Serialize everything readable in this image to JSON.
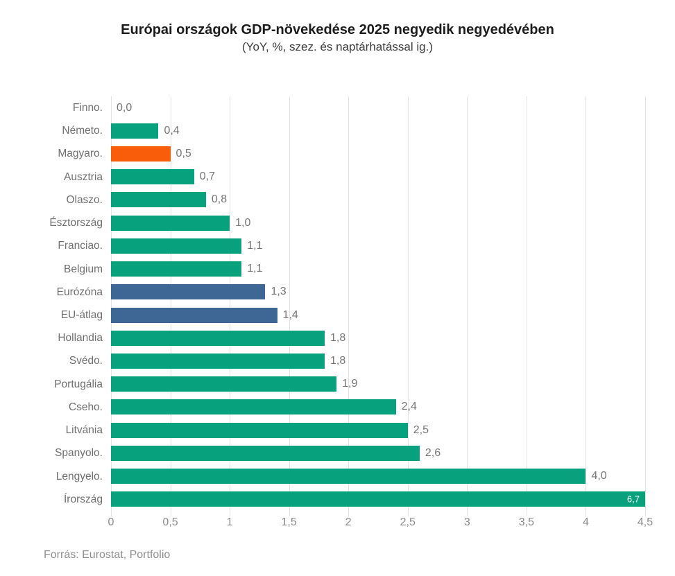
{
  "header": {
    "title": "Európai országok GDP-növekedése 2025 negyedik negyedévében",
    "subtitle": "(YoY, %, szez. és naptárhatással ig.)"
  },
  "footer": {
    "source": "Forrás: Eurostat, Portfolio"
  },
  "colors": {
    "bar_default": "#07a17d",
    "bar_highlight": "#f95d0a",
    "bar_aggregate": "#3e6795",
    "grid": "#e3e3e3",
    "category_text": "#6f6f6f",
    "value_text": "#757575",
    "value_inside_text": "#ffffff",
    "tick_text": "#8a8a8a",
    "title_text": "#1c1c1c"
  },
  "chart_data": {
    "type": "bar",
    "orientation": "horizontal",
    "title": "Európai országok GDP-növekedése 2025 negyedik negyedévében",
    "subtitle": "(YoY, %, szez. és naptárhatással ig.)",
    "xlabel": "",
    "ylabel": "",
    "xlim": [
      0,
      4.5
    ],
    "clip_max": 4.5,
    "grid": true,
    "legend": "none",
    "categories": [
      "Finno.",
      "Németo.",
      "Magyaro.",
      "Ausztria",
      "Olaszo.",
      "Észtország",
      "Franciao.",
      "Belgium",
      "Eurózóna",
      "EU-átlag",
      "Hollandia",
      "Svédo.",
      "Portugália",
      "Cseho.",
      "Litvánia",
      "Spanyolo.",
      "Lengyelo.",
      "Írország"
    ],
    "values": [
      0.0,
      0.4,
      0.5,
      0.7,
      0.8,
      1.0,
      1.1,
      1.1,
      1.3,
      1.4,
      1.8,
      1.8,
      1.9,
      2.4,
      2.5,
      2.6,
      4.0,
      6.7
    ],
    "value_labels": [
      "0,0",
      "0,4",
      "0,5",
      "0,7",
      "0,8",
      "1,0",
      "1,1",
      "1,1",
      "1,3",
      "1,4",
      "1,8",
      "1,8",
      "1,9",
      "2,4",
      "2,5",
      "2,6",
      "4,0",
      "6,7"
    ],
    "bar_roles": [
      "default",
      "default",
      "highlight",
      "default",
      "default",
      "default",
      "default",
      "default",
      "aggregate",
      "aggregate",
      "default",
      "default",
      "default",
      "default",
      "default",
      "default",
      "default",
      "default"
    ],
    "label_inside": [
      false,
      false,
      false,
      false,
      false,
      false,
      false,
      false,
      false,
      false,
      false,
      false,
      false,
      false,
      false,
      false,
      false,
      true
    ],
    "xticks": [
      0,
      0.5,
      1,
      1.5,
      2,
      2.5,
      3,
      3.5,
      4,
      4.5
    ],
    "xtick_labels": [
      "0",
      "0,5",
      "1",
      "1,5",
      "2",
      "2,5",
      "3",
      "3,5",
      "4",
      "4,5"
    ]
  }
}
